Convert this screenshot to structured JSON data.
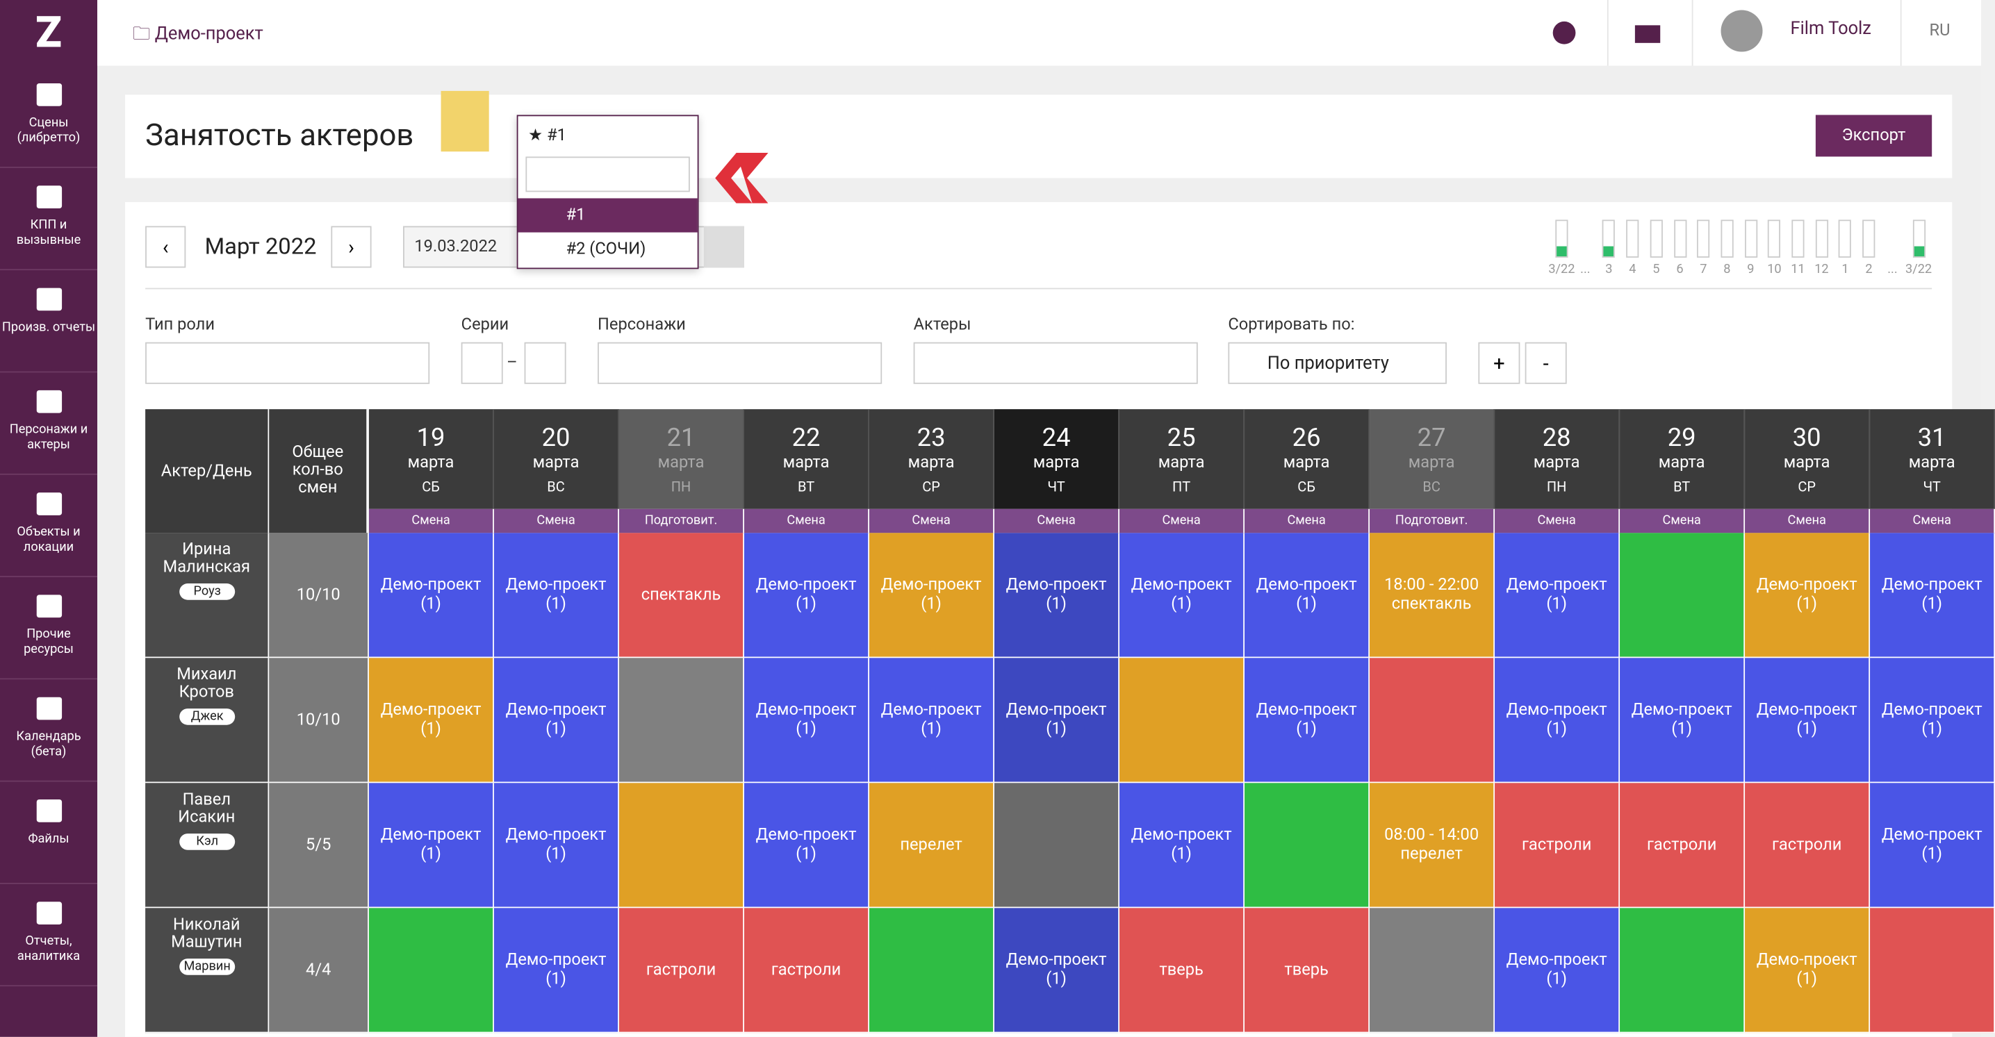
{
  "sidebar": {
    "logo": "Z",
    "items": [
      "Сцены\n(либретто)",
      "КПП и\nвызывные",
      "Произв. отчеты",
      "Персонажи и\nактеры",
      "Объекты и\nлокации",
      "Прочие\nресурсы",
      "Календарь\n(бета)",
      "Файлы",
      "Отчеты,\nаналитика"
    ]
  },
  "header": {
    "project": "Демо-проект",
    "user": "Film Toolz",
    "lang": "RU"
  },
  "page": {
    "title": "Занятость актеров",
    "export": "Экспорт",
    "selected": "#1",
    "options": [
      "#1",
      "#2 (СОЧИ)"
    ]
  },
  "calendar": {
    "month": "Март 2022",
    "prev": "‹",
    "next": "›",
    "date": "19.03.2022",
    "timeline": [
      {
        "label": "3/22",
        "active": true
      },
      {
        "label": "..."
      },
      {
        "label": "3",
        "active": true
      },
      {
        "label": "4"
      },
      {
        "label": "5"
      },
      {
        "label": "6"
      },
      {
        "label": "7"
      },
      {
        "label": "8"
      },
      {
        "label": "9"
      },
      {
        "label": "10"
      },
      {
        "label": "11"
      },
      {
        "label": "12"
      },
      {
        "label": "1"
      },
      {
        "label": "2"
      },
      {
        "label": "..."
      },
      {
        "label": "3/22",
        "active": true
      }
    ]
  },
  "filters": {
    "role_type": "Тип роли",
    "series": "Серии",
    "dash": "–",
    "characters": "Персонажи",
    "actors": "Актеры",
    "sort_label": "Сортировать по:",
    "sort_value": "По приоритету",
    "plus": "+",
    "minus": "-"
  },
  "table": {
    "actor_header": "Актер/День",
    "total_header": "Общее\nкол-во\nсмен",
    "days": [
      {
        "num": "19",
        "month": "марта",
        "dow": "СБ",
        "type": "Смена",
        "bg": "#3b3b3b"
      },
      {
        "num": "20",
        "month": "марта",
        "dow": "ВС",
        "type": "Смена",
        "bg": "#3b3b3b"
      },
      {
        "num": "21",
        "month": "марта",
        "dow": "ПН",
        "type": "Подготовит.",
        "bg": "#5e5e5e"
      },
      {
        "num": "22",
        "month": "марта",
        "dow": "ВТ",
        "type": "Смена",
        "bg": "#3b3b3b"
      },
      {
        "num": "23",
        "month": "марта",
        "dow": "СР",
        "type": "Смена",
        "bg": "#3b3b3b"
      },
      {
        "num": "24",
        "month": "марта",
        "dow": "ЧТ",
        "type": "Смена",
        "bg": "#1c1c1c"
      },
      {
        "num": "25",
        "month": "марта",
        "dow": "ПТ",
        "type": "Смена",
        "bg": "#3b3b3b"
      },
      {
        "num": "26",
        "month": "марта",
        "dow": "СБ",
        "type": "Смена",
        "bg": "#3b3b3b"
      },
      {
        "num": "27",
        "month": "марта",
        "dow": "ВС",
        "type": "Подготовит.",
        "bg": "#5e5e5e"
      },
      {
        "num": "28",
        "month": "марта",
        "dow": "ПН",
        "type": "Смена",
        "bg": "#3b3b3b"
      },
      {
        "num": "29",
        "month": "марта",
        "dow": "ВТ",
        "type": "Смена",
        "bg": "#3b3b3b"
      },
      {
        "num": "30",
        "month": "марта",
        "dow": "СР",
        "type": "Смена",
        "bg": "#3b3b3b"
      },
      {
        "num": "31",
        "month": "марта",
        "dow": "ЧТ",
        "type": "Смена",
        "bg": "#3b3b3b"
      }
    ],
    "rows": [
      {
        "name": "Ирина\nМалинская",
        "role": "Роуз",
        "total": "10/10",
        "cells": [
          {
            "text": "Демо-проект\n(1)",
            "color": "#4a55e6"
          },
          {
            "text": "Демо-проект\n(1)",
            "color": "#4a55e6"
          },
          {
            "text": "спектакль",
            "color": "#e05353"
          },
          {
            "text": "Демо-проект\n(1)",
            "color": "#4a55e6"
          },
          {
            "text": "Демо-проект\n(1)",
            "color": "#e0a025"
          },
          {
            "text": "Демо-проект\n(1)",
            "color": "#3d48c0"
          },
          {
            "text": "Демо-проект\n(1)",
            "color": "#4a55e6"
          },
          {
            "text": "Демо-проект\n(1)",
            "color": "#4a55e6"
          },
          {
            "text": "18:00 - 22:00\nспектакль",
            "color": "#e0a025"
          },
          {
            "text": "Демо-проект\n(1)",
            "color": "#4a55e6"
          },
          {
            "color": "#2fbd44"
          },
          {
            "text": "Демо-проект\n(1)",
            "color": "#e0a025"
          },
          {
            "text": "Демо-проект\n(1)",
            "color": "#4a55e6"
          }
        ]
      },
      {
        "name": "Михаил\nКротов",
        "role": "Джек",
        "total": "10/10",
        "cells": [
          {
            "text": "Демо-проект\n(1)",
            "color": "#e0a025"
          },
          {
            "text": "Демо-проект\n(1)",
            "color": "#4a55e6"
          },
          {
            "color": "#808080"
          },
          {
            "text": "Демо-проект\n(1)",
            "color": "#4a55e6"
          },
          {
            "text": "Демо-проект\n(1)",
            "color": "#4a55e6"
          },
          {
            "text": "Демо-проект\n(1)",
            "color": "#3d48c0"
          },
          {
            "color": "#e0a025"
          },
          {
            "text": "Демо-проект\n(1)",
            "color": "#4a55e6"
          },
          {
            "color": "#e05353"
          },
          {
            "text": "Демо-проект\n(1)",
            "color": "#4a55e6"
          },
          {
            "text": "Демо-проект\n(1)",
            "color": "#4a55e6"
          },
          {
            "text": "Демо-проект\n(1)",
            "color": "#4a55e6"
          },
          {
            "text": "Демо-проект\n(1)",
            "color": "#4a55e6"
          }
        ]
      },
      {
        "name": "Павел\nИсакин",
        "role": "Кэл",
        "total": "5/5",
        "cells": [
          {
            "text": "Демо-проект\n(1)",
            "color": "#4a55e6"
          },
          {
            "text": "Демо-проект\n(1)",
            "color": "#4a55e6"
          },
          {
            "color": "#e0a025"
          },
          {
            "text": "Демо-проект\n(1)",
            "color": "#4a55e6"
          },
          {
            "text": "перелет",
            "color": "#e0a025"
          },
          {
            "color": "#6a6a6a"
          },
          {
            "text": "Демо-проект\n(1)",
            "color": "#4a55e6"
          },
          {
            "color": "#2fbd44"
          },
          {
            "text": "08:00 - 14:00\nперелет",
            "color": "#e0a025"
          },
          {
            "text": "гастроли",
            "color": "#e05353"
          },
          {
            "text": "гастроли",
            "color": "#e05353"
          },
          {
            "text": "гастроли",
            "color": "#e05353"
          },
          {
            "text": "Демо-проект\n(1)",
            "color": "#4a55e6"
          }
        ]
      },
      {
        "name": "Николай\nМашутин",
        "role": "Марвин",
        "total": "4/4",
        "cells": [
          {
            "color": "#2fbd44"
          },
          {
            "text": "Демо-проект\n(1)",
            "color": "#4a55e6"
          },
          {
            "text": "гастроли",
            "color": "#e05353"
          },
          {
            "text": "гастроли",
            "color": "#e05353"
          },
          {
            "color": "#2fbd44"
          },
          {
            "text": "Демо-проект\n(1)",
            "color": "#3d48c0"
          },
          {
            "text": "тверь",
            "color": "#e05353"
          },
          {
            "text": "тверь",
            "color": "#e05353"
          },
          {
            "color": "#808080"
          },
          {
            "text": "Демо-проект\n(1)",
            "color": "#4a55e6"
          },
          {
            "color": "#2fbd44"
          },
          {
            "text": "Демо-проект\n(1)",
            "color": "#e0a025"
          },
          {
            "color": "#e05353"
          }
        ]
      }
    ]
  }
}
